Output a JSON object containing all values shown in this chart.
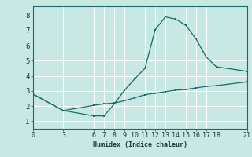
{
  "xlabel": "Humidex (Indice chaleur)",
  "background_color": "#c8e8e4",
  "line_color": "#1a6b6b",
  "grid_color": "#ffffff",
  "xticks": [
    0,
    3,
    6,
    7,
    8,
    9,
    10,
    11,
    12,
    13,
    14,
    15,
    16,
    17,
    18,
    21
  ],
  "yticks": [
    1,
    2,
    3,
    4,
    5,
    6,
    7,
    8
  ],
  "xlim": [
    0,
    21
  ],
  "ylim": [
    0.5,
    8.6
  ],
  "series1_x": [
    0,
    3,
    6,
    7,
    8,
    9,
    10,
    11,
    12,
    13,
    14,
    15,
    16,
    17,
    18,
    21
  ],
  "series1_y": [
    2.8,
    1.7,
    1.35,
    1.35,
    2.15,
    3.05,
    3.8,
    4.5,
    7.05,
    7.9,
    7.75,
    7.35,
    6.45,
    5.25,
    4.6,
    4.3
  ],
  "series2_x": [
    0,
    3,
    6,
    7,
    8,
    9,
    10,
    11,
    12,
    13,
    14,
    15,
    16,
    17,
    18,
    21
  ],
  "series2_y": [
    2.8,
    1.7,
    2.05,
    2.15,
    2.2,
    2.35,
    2.55,
    2.75,
    2.85,
    2.95,
    3.05,
    3.1,
    3.2,
    3.3,
    3.35,
    3.6
  ],
  "xlabel_fontsize": 6,
  "tick_fontsize": 6,
  "marker_size": 2.0,
  "line_width": 0.9
}
